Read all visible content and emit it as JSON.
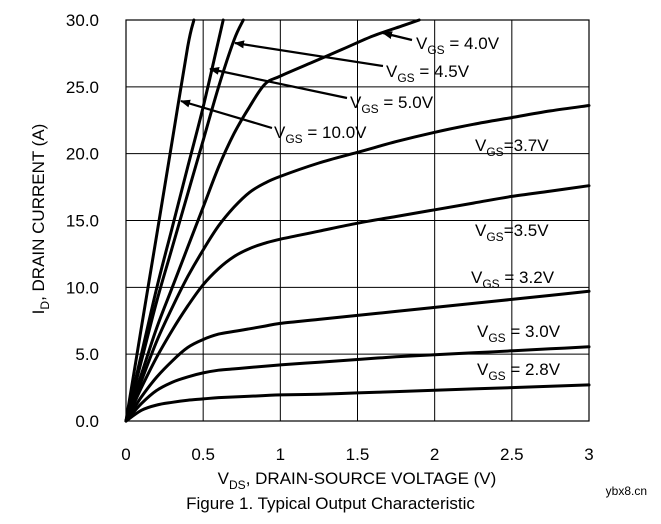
{
  "chart_data": {
    "type": "line",
    "title": "",
    "caption": "Figure 1. Typical Output Characteristic",
    "xlabel": {
      "main": "V",
      "sub": "DS",
      "rest": ", DRAIN-SOURCE VOLTAGE (V)"
    },
    "ylabel": {
      "main": "I",
      "sub": "D",
      "rest": ", DRAIN CURRENT (A)"
    },
    "xlim": [
      0,
      3
    ],
    "ylim": [
      0,
      30
    ],
    "grid": true,
    "x_ticks": [
      0,
      0.5,
      1,
      1.5,
      2,
      2.5,
      3
    ],
    "x_tick_labels": [
      "0",
      "0.5",
      "1",
      "1.5",
      "2",
      "2.5",
      "3"
    ],
    "y_ticks": [
      0,
      5,
      10,
      15,
      20,
      25,
      30
    ],
    "y_tick_labels": [
      "0.0",
      "5.0",
      "10.0",
      "15.0",
      "20.0",
      "25.0",
      "30.0"
    ],
    "series": [
      {
        "name": "VGS = 10.0V",
        "label_main": "V",
        "label_sub": "GS",
        "label_rest": " = 10.0V",
        "x": [
          0,
          0.1,
          0.2,
          0.3,
          0.4,
          0.44
        ],
        "y": [
          0,
          7.0,
          14.0,
          21.0,
          28.0,
          30.0
        ]
      },
      {
        "name": "VGS = 5.0V",
        "label_main": "V",
        "label_sub": "GS",
        "label_rest": " = 5.0V",
        "x": [
          0,
          0.1,
          0.2,
          0.3,
          0.4,
          0.5,
          0.6,
          0.63
        ],
        "y": [
          0,
          5.0,
          10.0,
          14.5,
          19.0,
          23.5,
          28.5,
          30.0
        ]
      },
      {
        "name": "VGS = 4.5V",
        "label_main": "V",
        "label_sub": "GS",
        "label_rest": " = 4.5V",
        "x": [
          0,
          0.1,
          0.2,
          0.3,
          0.4,
          0.5,
          0.6,
          0.7,
          0.76
        ],
        "y": [
          0,
          4.5,
          9.0,
          13.0,
          17.0,
          21.0,
          25.0,
          28.5,
          30.0
        ]
      },
      {
        "name": "VGS = 4.0V",
        "label_main": "V",
        "label_sub": "GS",
        "label_rest": " = 4.0V",
        "x": [
          0,
          0.1,
          0.2,
          0.3,
          0.4,
          0.5,
          0.6,
          0.7,
          0.8,
          0.9,
          1.0,
          1.2,
          1.4,
          1.6,
          1.8,
          1.9
        ],
        "y": [
          0,
          3.5,
          7.0,
          10.0,
          13.0,
          16.0,
          19.0,
          21.5,
          23.5,
          25.2,
          25.8,
          26.8,
          27.8,
          28.8,
          29.6,
          30.0
        ]
      },
      {
        "name": "VGS = 3.7V",
        "label_main": "V",
        "label_sub": "GS",
        "label_rest": "=3.7V",
        "x": [
          0,
          0.1,
          0.2,
          0.3,
          0.4,
          0.5,
          0.6,
          0.7,
          0.8,
          0.9,
          1.0,
          1.25,
          1.5,
          1.75,
          2.0,
          2.25,
          2.5,
          2.75,
          3.0
        ],
        "y": [
          0,
          3.0,
          6.0,
          8.5,
          10.8,
          12.8,
          14.6,
          16.0,
          17.1,
          17.8,
          18.3,
          19.3,
          20.1,
          20.9,
          21.6,
          22.2,
          22.7,
          23.2,
          23.6
        ]
      },
      {
        "name": "VGS = 3.5V",
        "label_main": "V",
        "label_sub": "GS",
        "label_rest": "=3.5V",
        "x": [
          0,
          0.1,
          0.2,
          0.3,
          0.4,
          0.5,
          0.6,
          0.7,
          0.8,
          0.9,
          1.0,
          1.25,
          1.5,
          1.75,
          2.0,
          2.25,
          2.5,
          2.75,
          3.0
        ],
        "y": [
          0,
          2.5,
          4.8,
          6.8,
          8.6,
          10.2,
          11.4,
          12.3,
          12.9,
          13.3,
          13.6,
          14.2,
          14.8,
          15.3,
          15.8,
          16.3,
          16.8,
          17.2,
          17.6
        ]
      },
      {
        "name": "VGS = 3.2V",
        "label_main": "V",
        "label_sub": "GS",
        "label_rest": " = 3.2V",
        "x": [
          0,
          0.1,
          0.2,
          0.3,
          0.4,
          0.5,
          0.6,
          0.7,
          0.8,
          0.9,
          1.0,
          1.25,
          1.5,
          1.75,
          2.0,
          2.25,
          2.5,
          2.75,
          3.0
        ],
        "y": [
          0,
          1.8,
          3.3,
          4.5,
          5.5,
          6.1,
          6.5,
          6.7,
          6.9,
          7.1,
          7.3,
          7.6,
          7.9,
          8.2,
          8.5,
          8.8,
          9.1,
          9.4,
          9.7
        ]
      },
      {
        "name": "VGS = 3.0V",
        "label_main": "V",
        "label_sub": "GS",
        "label_rest": " = 3.0V",
        "x": [
          0,
          0.1,
          0.2,
          0.3,
          0.4,
          0.5,
          0.6,
          0.7,
          0.8,
          1.0,
          1.25,
          1.5,
          1.75,
          2.0,
          2.25,
          2.5,
          2.75,
          3.0
        ],
        "y": [
          0,
          1.3,
          2.3,
          2.9,
          3.3,
          3.6,
          3.8,
          3.9,
          4.0,
          4.2,
          4.4,
          4.6,
          4.8,
          4.95,
          5.1,
          5.25,
          5.4,
          5.55
        ]
      },
      {
        "name": "VGS = 2.8V",
        "label_main": "V",
        "label_sub": "GS",
        "label_rest": " = 2.8V",
        "x": [
          0,
          0.1,
          0.2,
          0.3,
          0.4,
          0.5,
          0.6,
          0.8,
          1.0,
          1.25,
          1.5,
          1.75,
          2.0,
          2.25,
          2.5,
          2.75,
          3.0
        ],
        "y": [
          0,
          0.8,
          1.2,
          1.4,
          1.55,
          1.65,
          1.75,
          1.85,
          1.95,
          2.0,
          2.1,
          2.2,
          2.3,
          2.4,
          2.5,
          2.6,
          2.7
        ]
      }
    ]
  },
  "watermark": "ybx8.cn"
}
